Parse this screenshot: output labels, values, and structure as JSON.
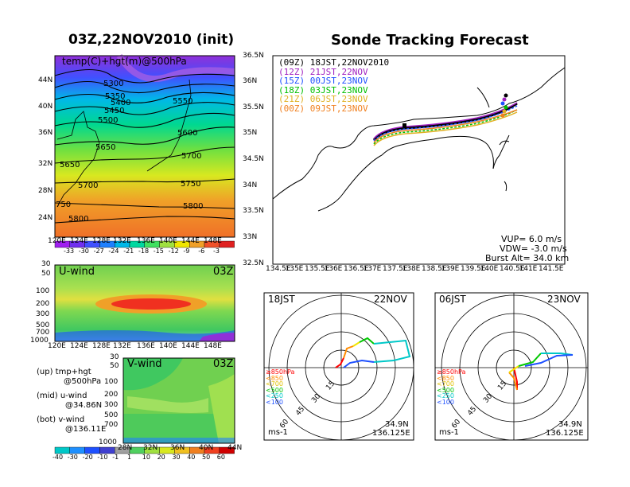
{
  "left_title": "03Z,22NOV2010  (init)",
  "right_title": "Sonde Tracking Forecast",
  "map500": {
    "label": "temp(C)+hgt(m)@500hPa",
    "contours": [
      "5300",
      "5350",
      "5400",
      "5450",
      "5500",
      "5550",
      "5600",
      "5650",
      "5650",
      "5700",
      "5700",
      "5750",
      "5800",
      "5800",
      "750"
    ],
    "lat_ticks": [
      "44N",
      "40N",
      "36N",
      "32N",
      "28N",
      "24N"
    ],
    "lon_ticks": [
      "120E",
      "124E",
      "128E",
      "132E",
      "136E",
      "140E",
      "144E",
      "148E"
    ],
    "colorbar": [
      "-33",
      "-30",
      "-27",
      "-24",
      "-21",
      "-18",
      "-15",
      "-12",
      "-9",
      "-6",
      "-3"
    ]
  },
  "uwind": {
    "label": "U-wind",
    "time": "03Z",
    "p_ticks": [
      "30",
      "50",
      "100",
      "200",
      "300",
      "500",
      "700",
      "1000"
    ],
    "lon_ticks": [
      "120E",
      "124E",
      "128E",
      "132E",
      "136E",
      "140E",
      "144E",
      "148E"
    ]
  },
  "vwind": {
    "label": "V-wind",
    "time": "03Z",
    "p_ticks": [
      "30",
      "50",
      "100",
      "200",
      "300",
      "500",
      "700",
      "1000"
    ],
    "lat_ticks": [
      "28N",
      "32N",
      "36N",
      "40N",
      "44N"
    ],
    "colorbar": [
      "-40",
      "-30",
      "-20",
      "-10",
      "-1",
      "1",
      "10",
      "20",
      "30",
      "40",
      "50",
      "60"
    ]
  },
  "legend_text": [
    "(up) tmp+hgt",
    "@500hPa",
    "(mid) u-wind",
    "@34.86N",
    "(bot) v-wind",
    "@136.11E"
  ],
  "track": {
    "runs": [
      {
        "text": "(09Z)  18JST,22NOV2010",
        "color": "#000000"
      },
      {
        "text": "(12Z)  21JST,22NOV",
        "color": "#a020c0"
      },
      {
        "text": "(15Z)  00JST,23NOV",
        "color": "#1e50ff"
      },
      {
        "text": "(18Z)  03JST,23NOV",
        "color": "#00c000"
      },
      {
        "text": "(21Z)  06JST,23NOV",
        "color": "#e0b020"
      },
      {
        "text": "(00Z)  09JST,23NOV",
        "color": "#f08020"
      }
    ],
    "lat_ticks": [
      "36.5N",
      "36N",
      "35.5N",
      "35N",
      "34.5N",
      "34N",
      "33.5N",
      "33N",
      "32.5N"
    ],
    "lon_ticks": [
      "134.5E",
      "135E",
      "135.5E",
      "136E",
      "136.5E",
      "137E",
      "137.5E",
      "138E",
      "138.5E",
      "139E",
      "139.5E",
      "140E",
      "140.5E",
      "141E",
      "141.5E"
    ],
    "vup": "VUP=  6.0  m/s",
    "vdw": "VDW=  -3.0  m/s",
    "burst": "Burst Alt=  34.0  km"
  },
  "hodo_left": {
    "time": "18JST",
    "date": "22NOV",
    "unit": "ms-1",
    "lat": "34.9N",
    "lon": "136.125E",
    "rings": [
      "15",
      "30",
      "45",
      "60"
    ]
  },
  "hodo_right": {
    "time": "06JST",
    "date": "23NOV",
    "unit": "ms-1",
    "lat": "34.9N",
    "lon": "136.125E",
    "rings": [
      "15",
      "30",
      "45",
      "60"
    ]
  },
  "hodo_levels": [
    {
      "text": "≥850hPa",
      "color": "#ff0000"
    },
    {
      "text": "<850",
      "color": "#ff8c00"
    },
    {
      "text": "<700",
      "color": "#e0c000"
    },
    {
      "text": "<500",
      "color": "#00c000"
    },
    {
      "text": "<250",
      "color": "#00c8c8"
    },
    {
      "text": "<100",
      "color": "#1e50ff"
    }
  ],
  "colors": {
    "red": "#ff0000",
    "orange": "#ff8c00",
    "yellow": "#f0e600",
    "green": "#00c800",
    "cyan": "#00c8c8",
    "blue": "#1e50ff",
    "purple": "#a020f0"
  }
}
